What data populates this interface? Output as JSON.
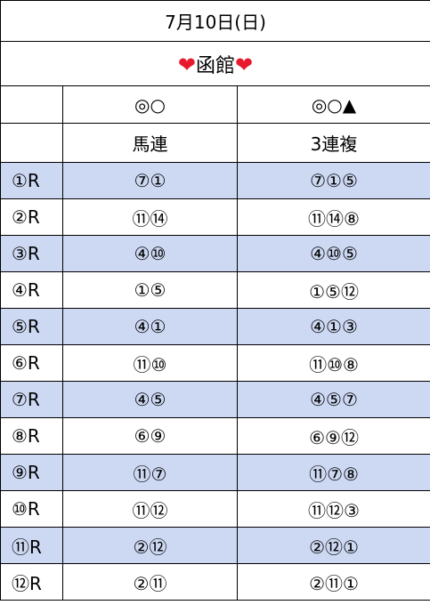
{
  "date": "7月10日(日)",
  "venue": {
    "heart_left": "❤",
    "name": "函館",
    "heart_right": "❤",
    "heart_color": "#e8192c"
  },
  "header": {
    "marks_umaren": "◎○",
    "marks_sanrenpuku": "◎○▲",
    "bet_umaren": "馬連",
    "bet_sanrenpuku": "3連複"
  },
  "highlight_color": "#cdd9f3",
  "races": [
    {
      "race": "①R",
      "umaren": "⑦①",
      "sanrenpuku": "⑦①⑤"
    },
    {
      "race": "②R",
      "umaren": "⑪⑭",
      "sanrenpuku": "⑪⑭⑧"
    },
    {
      "race": "③R",
      "umaren": "④⑩",
      "sanrenpuku": "④⑩⑤"
    },
    {
      "race": "④R",
      "umaren": "①⑤",
      "sanrenpuku": "①⑤⑫"
    },
    {
      "race": "⑤R",
      "umaren": "④①",
      "sanrenpuku": "④①③"
    },
    {
      "race": "⑥R",
      "umaren": "⑪⑩",
      "sanrenpuku": "⑪⑩⑧"
    },
    {
      "race": "⑦R",
      "umaren": "④⑤",
      "sanrenpuku": "④⑤⑦"
    },
    {
      "race": "⑧R",
      "umaren": "⑥⑨",
      "sanrenpuku": "⑥⑨⑫"
    },
    {
      "race": "⑨R",
      "umaren": "⑪⑦",
      "sanrenpuku": "⑪⑦⑧"
    },
    {
      "race": "⑩R",
      "umaren": "⑪⑫",
      "sanrenpuku": "⑪⑫③"
    },
    {
      "race": "⑪R",
      "umaren": "②⑫",
      "sanrenpuku": "②⑫①"
    },
    {
      "race": "⑫R",
      "umaren": "②⑪",
      "sanrenpuku": "②⑪①"
    }
  ]
}
